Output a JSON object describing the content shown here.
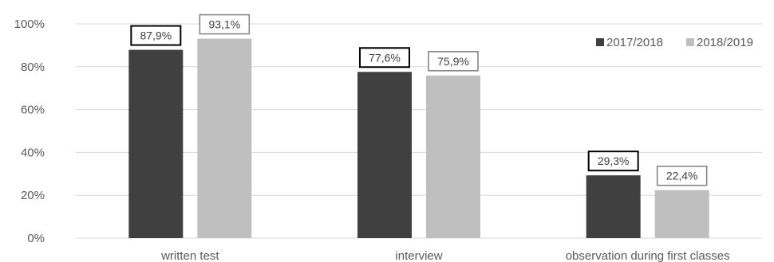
{
  "chart_data": {
    "type": "bar",
    "categories": [
      "written test",
      "interview",
      "observation during first classes"
    ],
    "series": [
      {
        "name": "2017/2018",
        "values": [
          87.9,
          77.6,
          29.3
        ],
        "labels": [
          "87,9%",
          "77,6%",
          "29,3%"
        ],
        "color": "#404040",
        "label_border": "#000000"
      },
      {
        "name": "2018/2019",
        "values": [
          93.1,
          75.9,
          22.4
        ],
        "labels": [
          "93,1%",
          "75,9%",
          "22,4%"
        ],
        "color": "#bfbfbf",
        "label_border": "#7f7f7f"
      }
    ],
    "y_ticks": [
      0,
      20,
      40,
      60,
      80,
      100
    ],
    "y_tick_labels": [
      "0%",
      "20%",
      "40%",
      "60%",
      "80%",
      "100%"
    ],
    "ylim": [
      0,
      100
    ],
    "grid": true,
    "legend_position": "top-right",
    "title": "",
    "xlabel": "",
    "ylabel": ""
  }
}
